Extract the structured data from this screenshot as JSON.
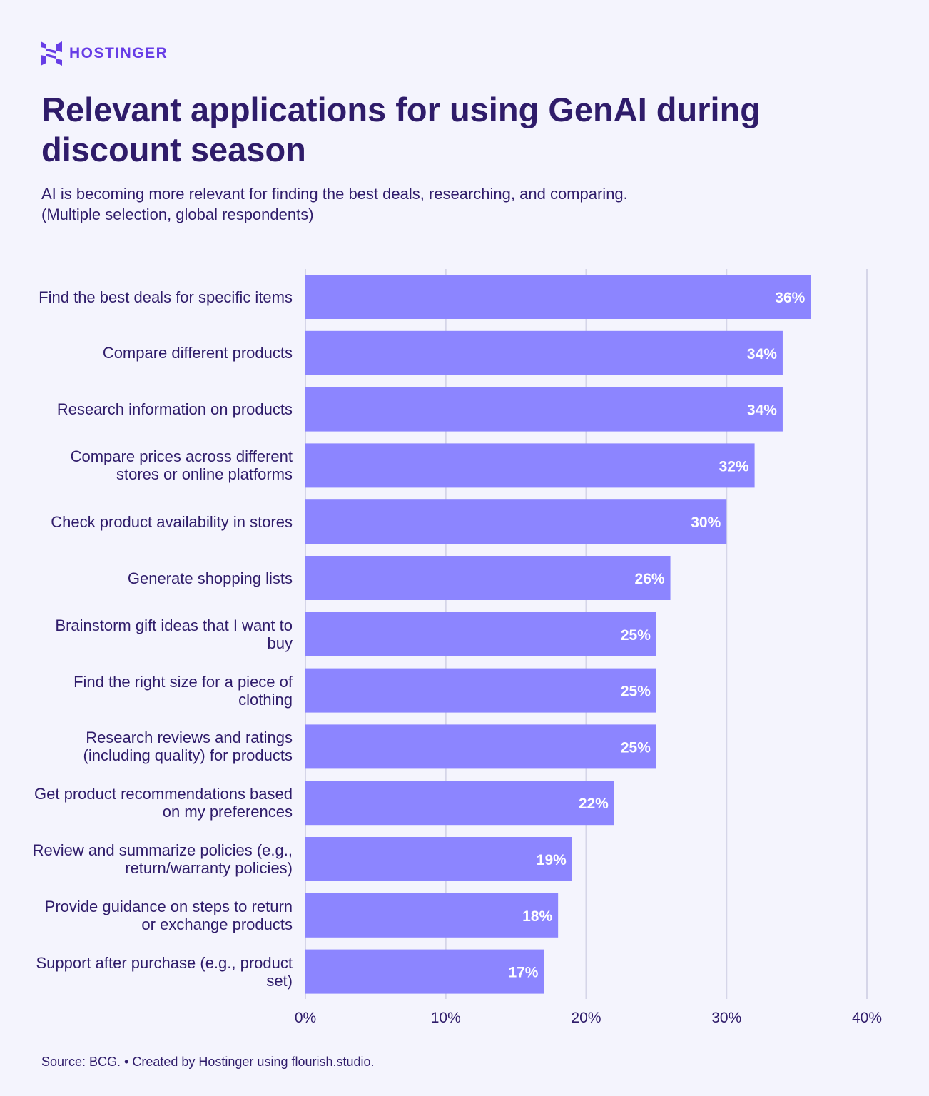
{
  "brand": {
    "name": "HOSTINGER",
    "color": "#673de6"
  },
  "header": {
    "title": "Relevant applications for using GenAI during discount season",
    "subtitle_lines": [
      "AI is becoming more relevant for finding the best deals, researching, and comparing.",
      "(Multiple selection, global respondents)"
    ]
  },
  "chart_data": {
    "type": "bar",
    "orientation": "horizontal",
    "categories": [
      "Find the best deals for specific items",
      "Compare different products",
      "Research information on products",
      "Compare prices across different stores or online platforms",
      "Check product availability in stores",
      "Generate shopping lists",
      "Brainstorm gift ideas that I want to buy",
      "Find the right size for a piece of clothing",
      "Research reviews and ratings (including quality) for products",
      "Get product recommendations based on my preferences",
      "Review and summarize policies (e.g., return/warranty policies)",
      "Provide guidance on steps to return or exchange products",
      "Support after purchase (e.g., product set)"
    ],
    "values": [
      36,
      34,
      34,
      32,
      30,
      26,
      25,
      25,
      25,
      22,
      19,
      18,
      17
    ],
    "data_labels": [
      "36%",
      "34%",
      "34%",
      "32%",
      "30%",
      "26%",
      "25%",
      "25%",
      "25%",
      "22%",
      "19%",
      "18%",
      "17%"
    ],
    "xlim": [
      0,
      40
    ],
    "x_ticks": [
      0,
      10,
      20,
      30,
      40
    ],
    "x_tick_labels": [
      "0%",
      "10%",
      "20%",
      "30%",
      "40%"
    ],
    "grid": true,
    "bar_color": "#8c85ff",
    "grid_color": "#d5d5e8",
    "label_color": "#ffffff"
  },
  "footer": {
    "source": "Source: BCG. • Created by Hostinger using flourish.studio."
  }
}
